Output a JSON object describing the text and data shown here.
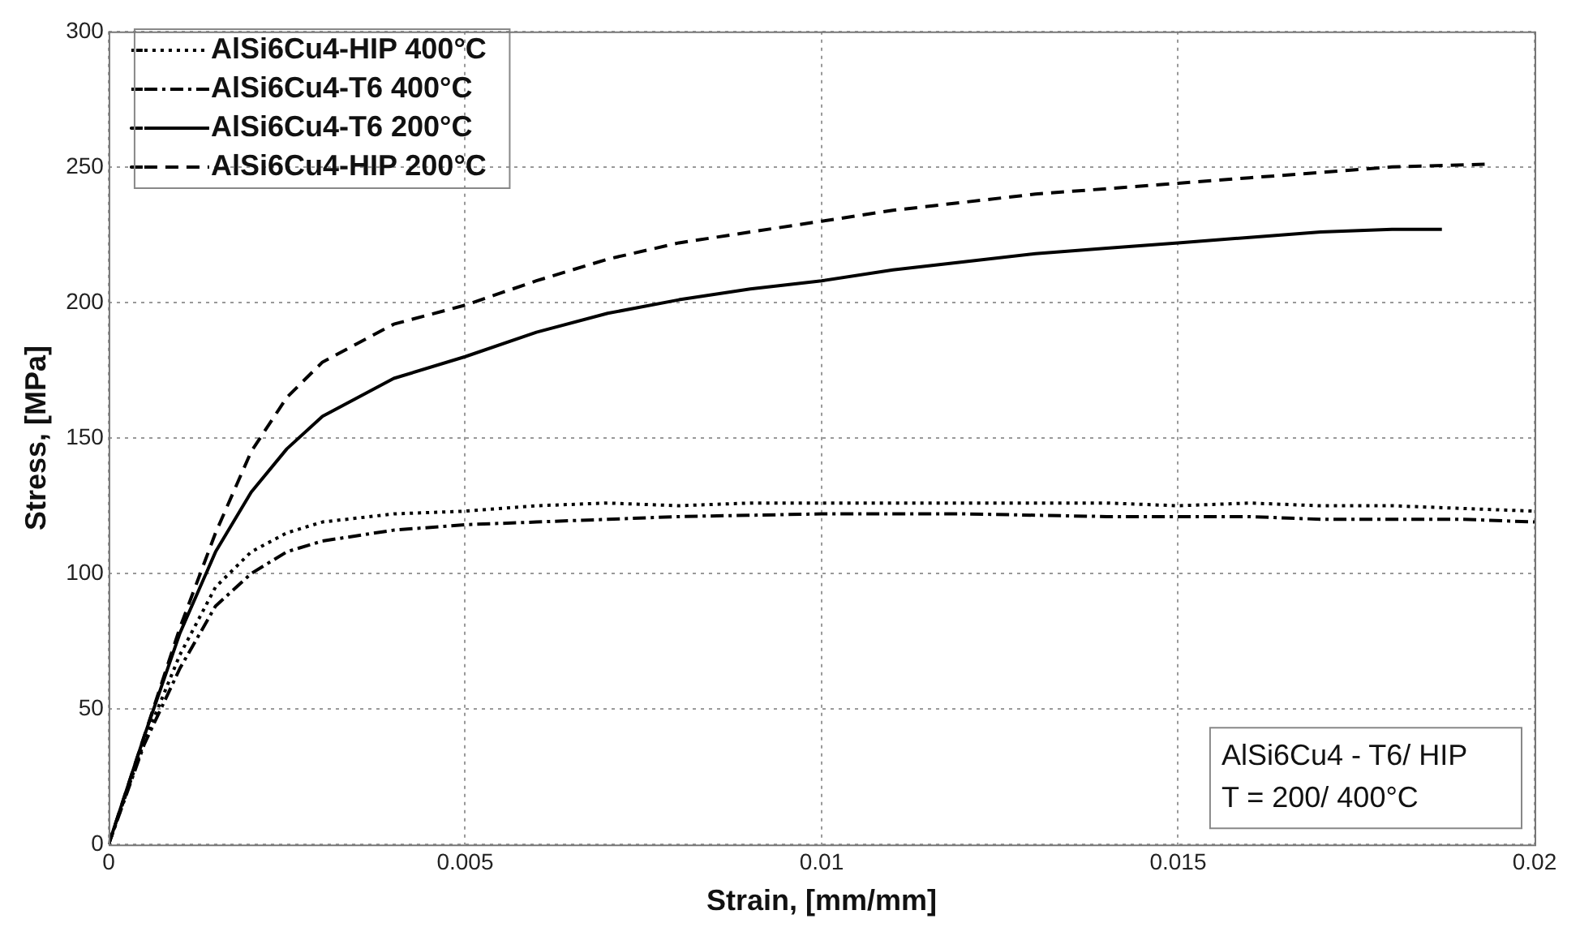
{
  "chart_data": {
    "type": "line",
    "xlabel": "Strain, [mm/mm]",
    "ylabel": "Stress, [MPa]",
    "xlim": [
      0,
      0.02
    ],
    "xticks": [
      0,
      0.005,
      0.01,
      0.015,
      0.02
    ],
    "ylim": [
      0,
      300
    ],
    "yticks": [
      0,
      50,
      100,
      150,
      200,
      250,
      300
    ],
    "grid": true,
    "legend": "top left",
    "marker": "none",
    "annotations": [
      "AlSi6Cu4 - T6/ HIP",
      "T = 200/ 400°C"
    ],
    "series": [
      {
        "name": "AlSi6Cu4-HIP 400°C",
        "color": "#000000",
        "line_style": "dotted",
        "x": [
          0,
          0.0005,
          0.001,
          0.0015,
          0.002,
          0.0025,
          0.003,
          0.004,
          0.005,
          0.006,
          0.007,
          0.008,
          0.009,
          0.01,
          0.012,
          0.014,
          0.015,
          0.016,
          0.017,
          0.018,
          0.019,
          0.02
        ],
        "values": [
          0,
          38,
          70,
          95,
          108,
          115,
          119,
          122,
          123,
          125,
          126,
          125,
          126,
          126,
          126,
          126,
          125,
          126,
          125,
          125,
          124,
          123
        ]
      },
      {
        "name": "AlSi6Cu4-T6 400°C",
        "color": "#000000",
        "line_style": "dashdot",
        "x": [
          0,
          0.0005,
          0.001,
          0.0015,
          0.002,
          0.0025,
          0.003,
          0.004,
          0.005,
          0.006,
          0.007,
          0.008,
          0.01,
          0.012,
          0.014,
          0.015,
          0.016,
          0.017,
          0.018,
          0.019,
          0.02
        ],
        "values": [
          0,
          37,
          65,
          88,
          100,
          108,
          112,
          116,
          118,
          119,
          120,
          121,
          122,
          122,
          121,
          121,
          121,
          120,
          120,
          120,
          119
        ]
      },
      {
        "name": "AlSi6Cu4-T6 200°C",
        "color": "#000000",
        "line_style": "solid",
        "x": [
          0,
          0.0005,
          0.001,
          0.0015,
          0.002,
          0.0025,
          0.003,
          0.004,
          0.005,
          0.006,
          0.007,
          0.008,
          0.009,
          0.01,
          0.011,
          0.012,
          0.013,
          0.014,
          0.015,
          0.016,
          0.017,
          0.018,
          0.0187
        ],
        "values": [
          0,
          40,
          78,
          108,
          130,
          146,
          158,
          172,
          180,
          189,
          196,
          201,
          205,
          208,
          212,
          215,
          218,
          220,
          222,
          224,
          226,
          227,
          227
        ]
      },
      {
        "name": "AlSi6Cu4-HIP 200°C",
        "color": "#000000",
        "line_style": "dashed",
        "x": [
          0,
          0.0005,
          0.001,
          0.0015,
          0.002,
          0.0025,
          0.003,
          0.004,
          0.005,
          0.006,
          0.007,
          0.008,
          0.009,
          0.01,
          0.011,
          0.012,
          0.013,
          0.014,
          0.015,
          0.016,
          0.017,
          0.018,
          0.0193
        ],
        "values": [
          0,
          40,
          80,
          115,
          145,
          165,
          178,
          192,
          199,
          208,
          216,
          222,
          226,
          230,
          234,
          237,
          240,
          242,
          244,
          246,
          248,
          250,
          251
        ]
      }
    ]
  }
}
